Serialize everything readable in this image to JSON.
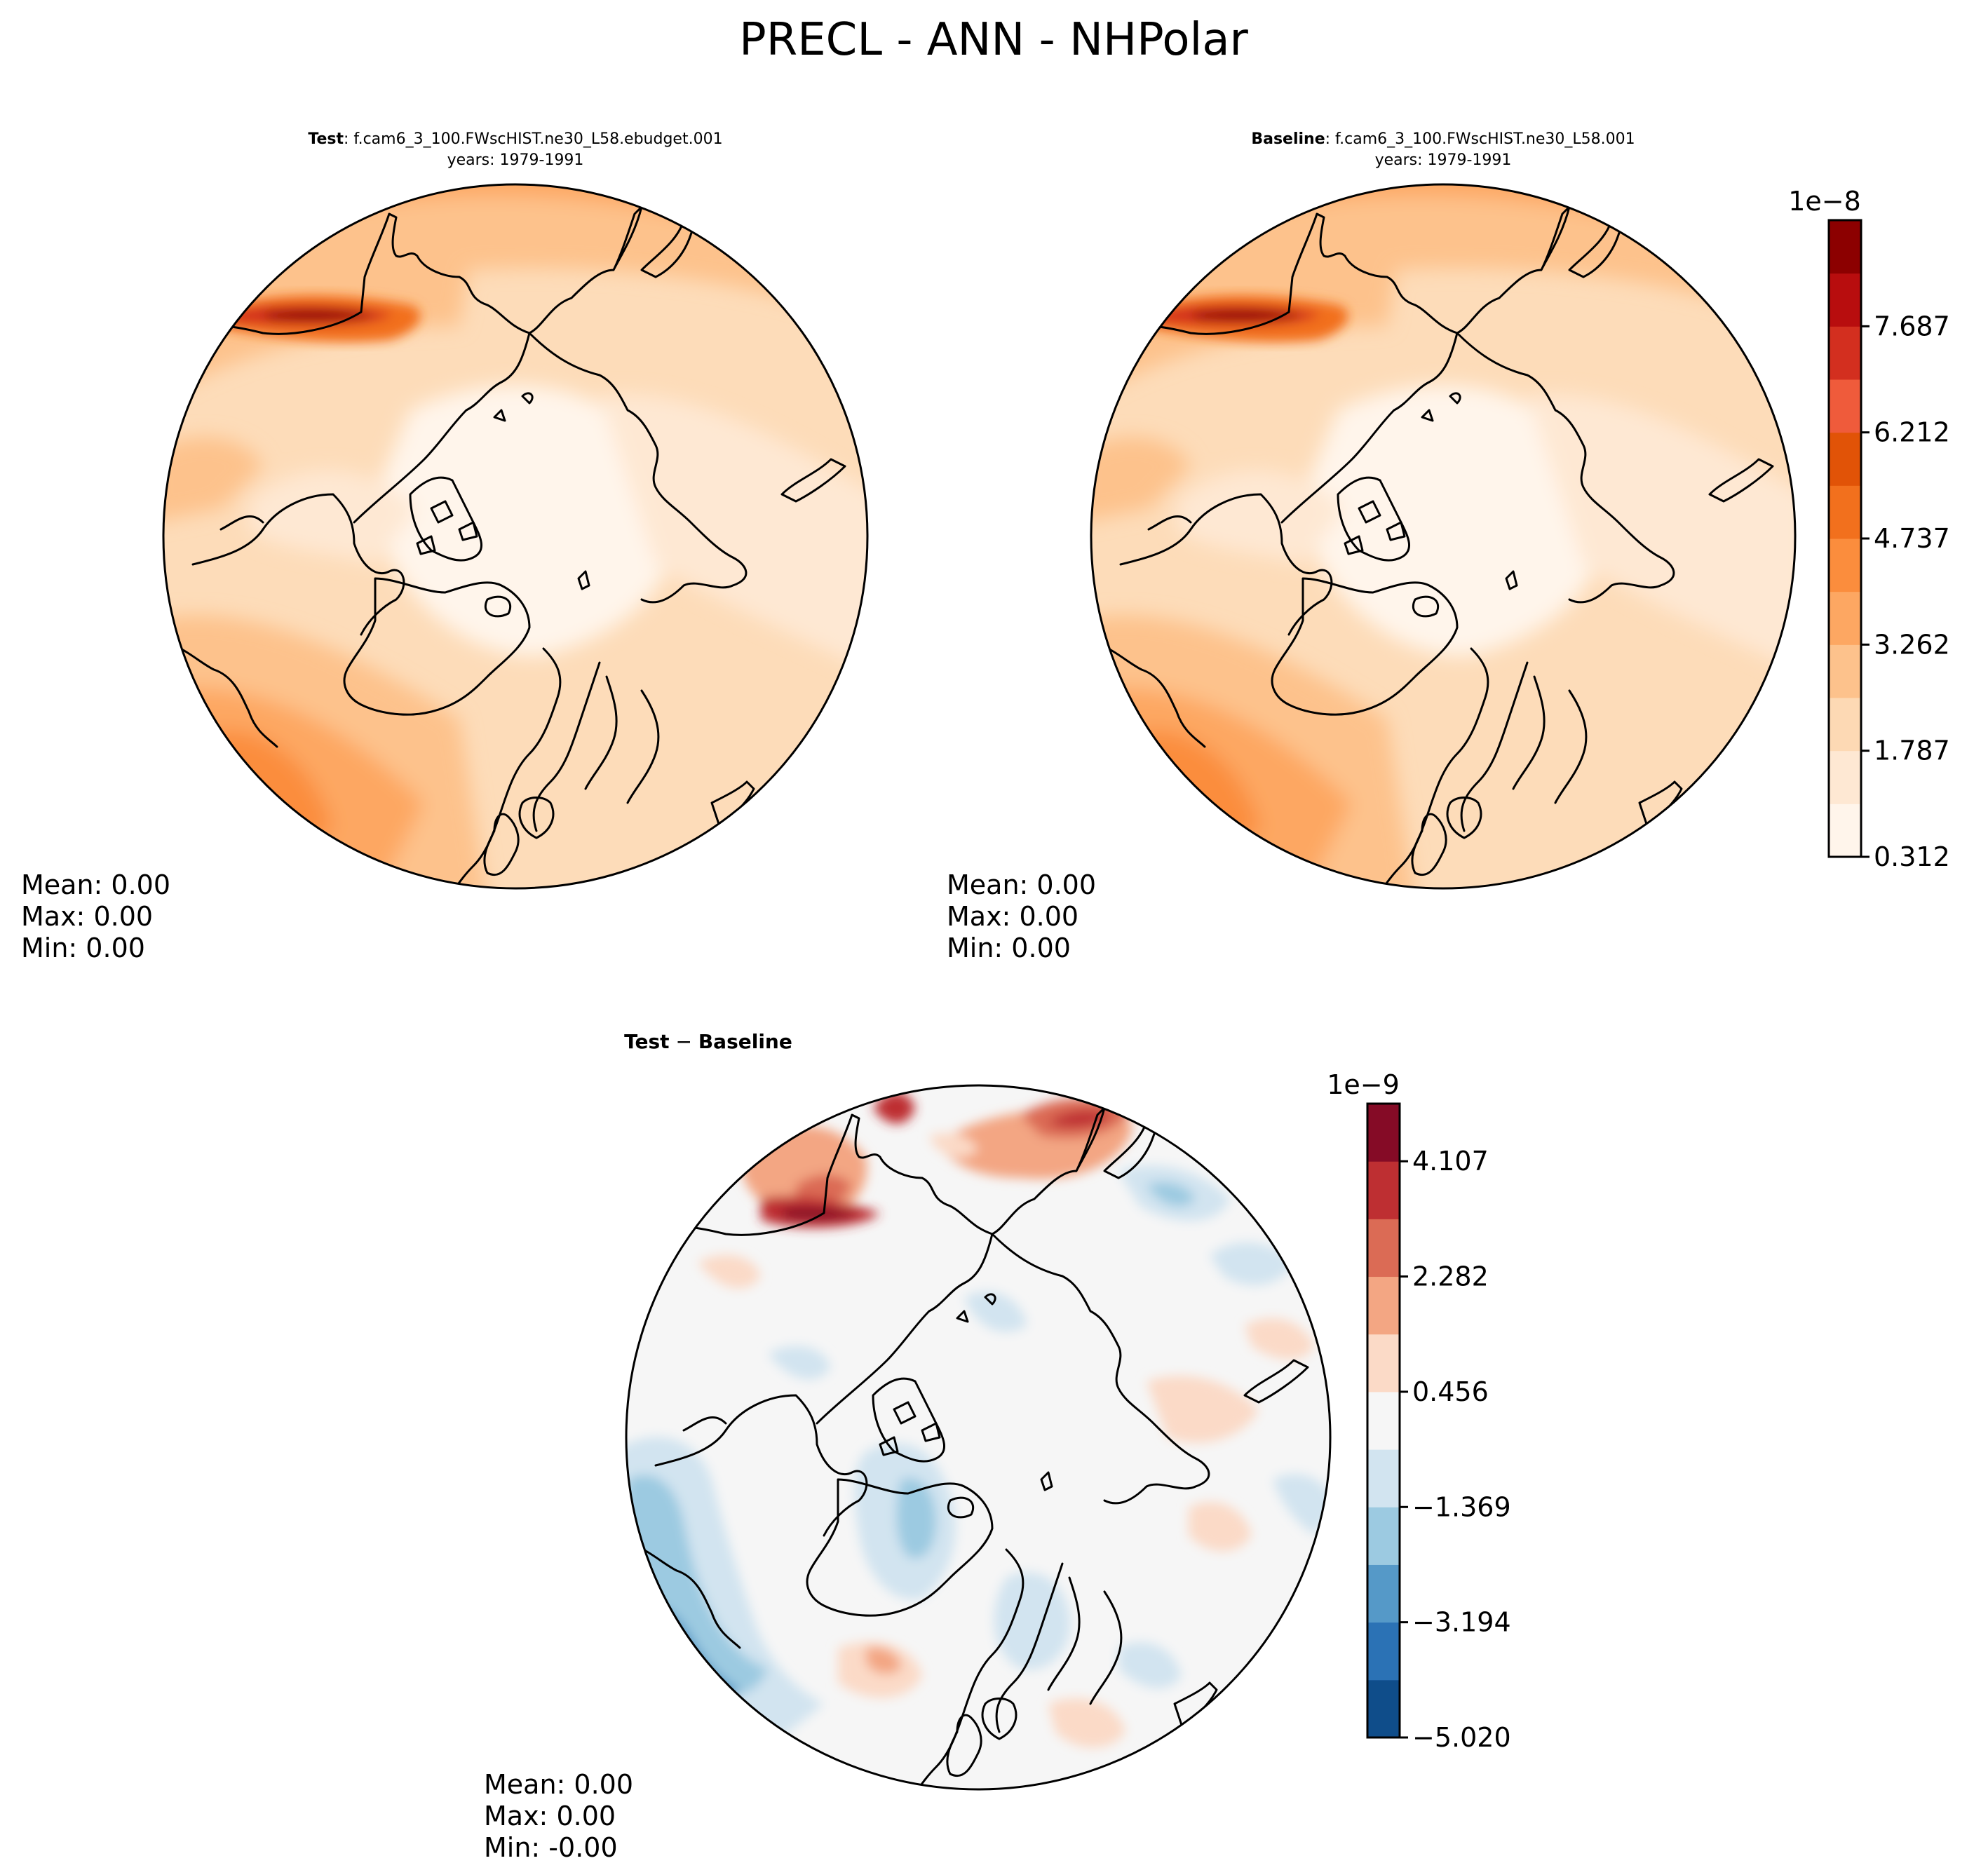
{
  "title": "PRECL - ANN - NHPolar",
  "panels": [
    {
      "id": "test",
      "label_bold": "Test",
      "label_rest": ": f.cam6_3_100.FWscHIST.ne30_L58.ebudget.001",
      "years": "years: 1979-1991",
      "stats": [
        "Mean:  0.00",
        "Max:  0.00",
        "Min:  0.00"
      ]
    },
    {
      "id": "baseline",
      "label_bold": "Baseline",
      "label_rest": ": f.cam6_3_100.FWscHIST.ne30_L58.001",
      "years": "years: 1979-1991",
      "stats": [
        "Mean:  0.00",
        "Max:  0.00",
        "Min:  0.00"
      ]
    },
    {
      "id": "diff",
      "label_bold": "Test",
      "label_op": " − ",
      "label_bold2": "Baseline",
      "stats": [
        "Mean:  0.00",
        "Max:  0.00",
        "Min: -0.00"
      ]
    }
  ],
  "colorbars": [
    {
      "id": "abs",
      "exponent": "1e−8",
      "tick_labels": [
        "0.312",
        "1.787",
        "3.262",
        "4.737",
        "6.212",
        "7.687"
      ],
      "colors": [
        "#fff5eb",
        "#fee8d3",
        "#fdd9b4",
        "#fdc28c",
        "#fda762",
        "#fb8d3d",
        "#f2701d",
        "#e15307",
        "#ef5b3b",
        "#d32f1f",
        "#b80d0e",
        "#8c0000"
      ]
    },
    {
      "id": "diff",
      "exponent": "1e−9",
      "tick_labels": [
        "−5.020",
        "−3.194",
        "−1.369",
        "0.456",
        "2.282",
        "4.107"
      ],
      "colors": [
        "#0f4d8a",
        "#2b72b5",
        "#5599c8",
        "#9ccae1",
        "#d2e4f0",
        "#f6f6f6",
        "#fbdac7",
        "#f3a683",
        "#db6b55",
        "#be2f32",
        "#850b26"
      ]
    }
  ],
  "chart_data": [
    {
      "type": "heatmap",
      "title": "Test : f.cam6_3_100.FWscHIST.ne30_L58.ebudget.001",
      "subtitle": "years: 1979-1991",
      "projection": "north polar stereographic",
      "variable": "PRECL",
      "season": "ANN",
      "colorbar_scale": "1e-8",
      "levels": [
        0.312,
        1.787,
        3.262,
        4.737,
        6.212,
        7.687
      ],
      "stats": {
        "mean": 0.0,
        "max": 0.0,
        "min": 0.0
      }
    },
    {
      "type": "heatmap",
      "title": "Baseline : f.cam6_3_100.FWscHIST.ne30_L58.001",
      "subtitle": "years: 1979-1991",
      "projection": "north polar stereographic",
      "variable": "PRECL",
      "season": "ANN",
      "colorbar_scale": "1e-8",
      "levels": [
        0.312,
        1.787,
        3.262,
        4.737,
        6.212,
        7.687
      ],
      "stats": {
        "mean": 0.0,
        "max": 0.0,
        "min": 0.0
      }
    },
    {
      "type": "heatmap",
      "title": "Test − Baseline",
      "projection": "north polar stereographic",
      "colorbar_scale": "1e-9",
      "levels": [
        -5.02,
        -3.194,
        -1.369,
        0.456,
        2.282,
        4.107
      ],
      "stats": {
        "mean": 0.0,
        "max": 0.0,
        "min": -0.0
      }
    }
  ]
}
